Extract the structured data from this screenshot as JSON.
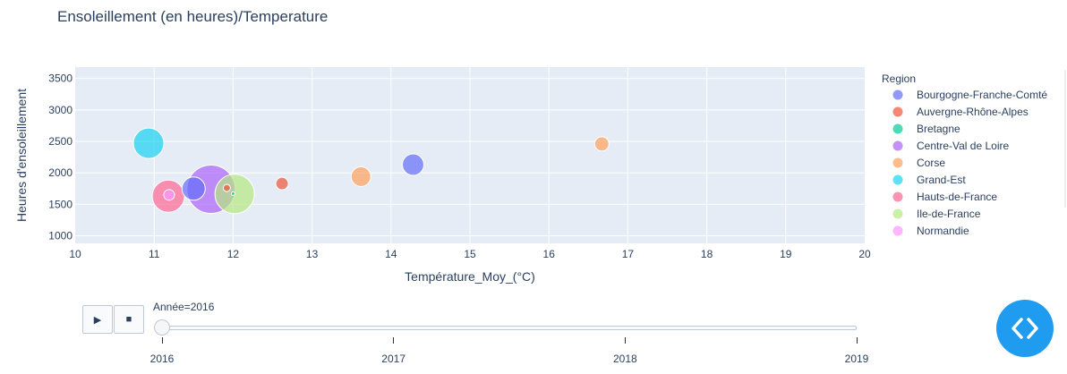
{
  "chart_data": {
    "type": "scatter",
    "title": "Ensoleillement (en heures)/Temperature",
    "xlabel": "Température_Moy_(°C)",
    "ylabel": "Heures d'ensoleillement",
    "xlim": [
      10,
      20
    ],
    "ylim": [
      880,
      3680
    ],
    "x_ticks": [
      10,
      11,
      12,
      13,
      14,
      15,
      16,
      17,
      18,
      19,
      20
    ],
    "y_ticks": [
      1000,
      1500,
      2000,
      2500,
      3000,
      3500
    ],
    "grid": true,
    "legend_title": "Region",
    "legend_position": "right",
    "series": [
      {
        "name": "Bourgogne-Franche-Comté",
        "color": "#636efa",
        "points": [
          {
            "x": 11.5,
            "y": 1750,
            "size": 13
          },
          {
            "x": 14.28,
            "y": 2130,
            "size": 12
          }
        ]
      },
      {
        "name": "Auvergne-Rhône-Alpes",
        "color": "#ef553b",
        "points": [
          {
            "x": 12.62,
            "y": 1830,
            "size": 7
          },
          {
            "x": 11.92,
            "y": 1760,
            "size": 4
          }
        ]
      },
      {
        "name": "Bretagne",
        "color": "#00cc96",
        "points": [
          {
            "x": 12.0,
            "y": 1670,
            "size": 2
          }
        ]
      },
      {
        "name": "Centre-Val de Loire",
        "color": "#ab63fa",
        "points": [
          {
            "x": 11.72,
            "y": 1740,
            "size": 27
          }
        ]
      },
      {
        "name": "Corse",
        "color": "#ffa15a",
        "points": [
          {
            "x": 16.67,
            "y": 2460,
            "size": 8
          },
          {
            "x": 13.62,
            "y": 1940,
            "size": 11
          }
        ]
      },
      {
        "name": "Grand-Est",
        "color": "#19d3f3",
        "points": [
          {
            "x": 10.93,
            "y": 2470,
            "size": 17
          }
        ]
      },
      {
        "name": "Hauts-de-France",
        "color": "#ff6692",
        "points": [
          {
            "x": 11.18,
            "y": 1630,
            "size": 18
          }
        ]
      },
      {
        "name": "Ile-de-France",
        "color": "#b6e880",
        "points": [
          {
            "x": 12.02,
            "y": 1665,
            "size": 22
          }
        ]
      },
      {
        "name": "Normandie",
        "color": "#ff97ff",
        "points": [
          {
            "x": 11.19,
            "y": 1650,
            "size": 6
          }
        ]
      }
    ]
  },
  "slider": {
    "label": "Année=2016",
    "steps": [
      "2016",
      "2017",
      "2018",
      "2019"
    ],
    "selected_index": 0
  },
  "controls": {
    "play_icon": "play-icon",
    "stop_icon": "stop-icon"
  },
  "fab": {
    "icon": "code-icon",
    "color": "#1f9bf0"
  }
}
